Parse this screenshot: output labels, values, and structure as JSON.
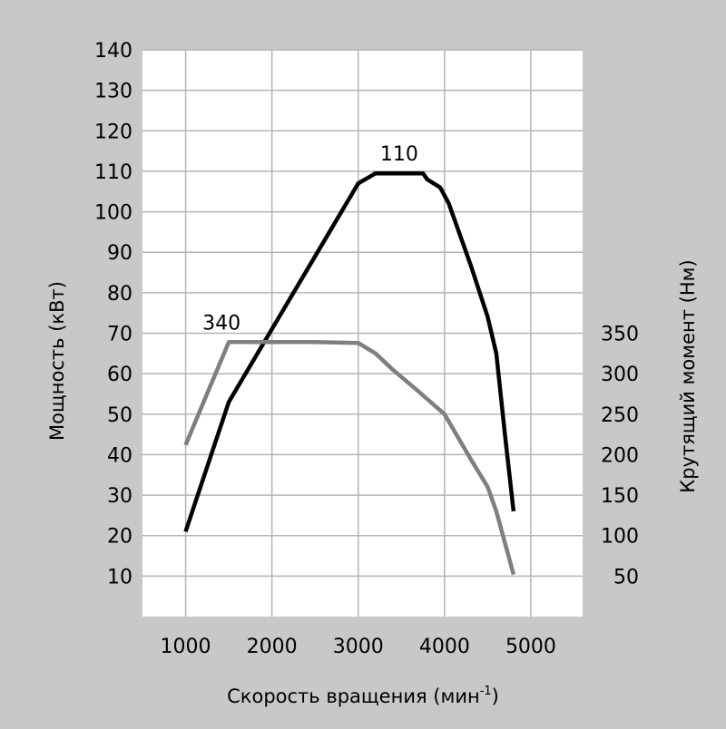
{
  "chart_data": {
    "type": "line",
    "xlabel": "Скорость вращения (мин",
    "xlabel_sup": "-1",
    "xlabel_suffix": ")",
    "ylabel_left": "Мощность (кВт)",
    "ylabel_right": "Крутящий момент (Нм)",
    "x_ticks": [
      1000,
      2000,
      3000,
      4000,
      5000
    ],
    "xlim": [
      500,
      5600
    ],
    "y_left_ticks": [
      10,
      20,
      30,
      40,
      50,
      60,
      70,
      80,
      90,
      100,
      110,
      120,
      130,
      140
    ],
    "ylim_left": [
      0,
      140
    ],
    "y_right_ticks": [
      50,
      100,
      150,
      200,
      250,
      300,
      350
    ],
    "right_axis_mapping": {
      "torque_at_left_0": 0,
      "torque_per_left_unit": 5
    },
    "grid": true,
    "series": [
      {
        "key": "power",
        "axis": "left",
        "color": "#000000",
        "peak_label": "110",
        "points": [
          [
            1000,
            21
          ],
          [
            1250,
            37
          ],
          [
            1500,
            53
          ],
          [
            2000,
            71
          ],
          [
            2500,
            89
          ],
          [
            3000,
            107
          ],
          [
            3200,
            109.5
          ],
          [
            3500,
            109.5
          ],
          [
            3750,
            109.5
          ],
          [
            3800,
            108
          ],
          [
            3950,
            106
          ],
          [
            4050,
            102
          ],
          [
            4300,
            87
          ],
          [
            4500,
            74
          ],
          [
            4600,
            65
          ],
          [
            4700,
            45
          ],
          [
            4800,
            26
          ]
        ]
      },
      {
        "key": "torque",
        "axis": "right",
        "color": "#7f7f7f",
        "peak_label": "340",
        "points": [
          [
            1000,
            212
          ],
          [
            1500,
            339
          ],
          [
            2000,
            339
          ],
          [
            2500,
            339
          ],
          [
            3000,
            338
          ],
          [
            3200,
            325
          ],
          [
            3400,
            305
          ],
          [
            3700,
            278
          ],
          [
            4000,
            250
          ],
          [
            4300,
            195
          ],
          [
            4500,
            160
          ],
          [
            4600,
            130
          ],
          [
            4800,
            52
          ]
        ]
      }
    ]
  }
}
